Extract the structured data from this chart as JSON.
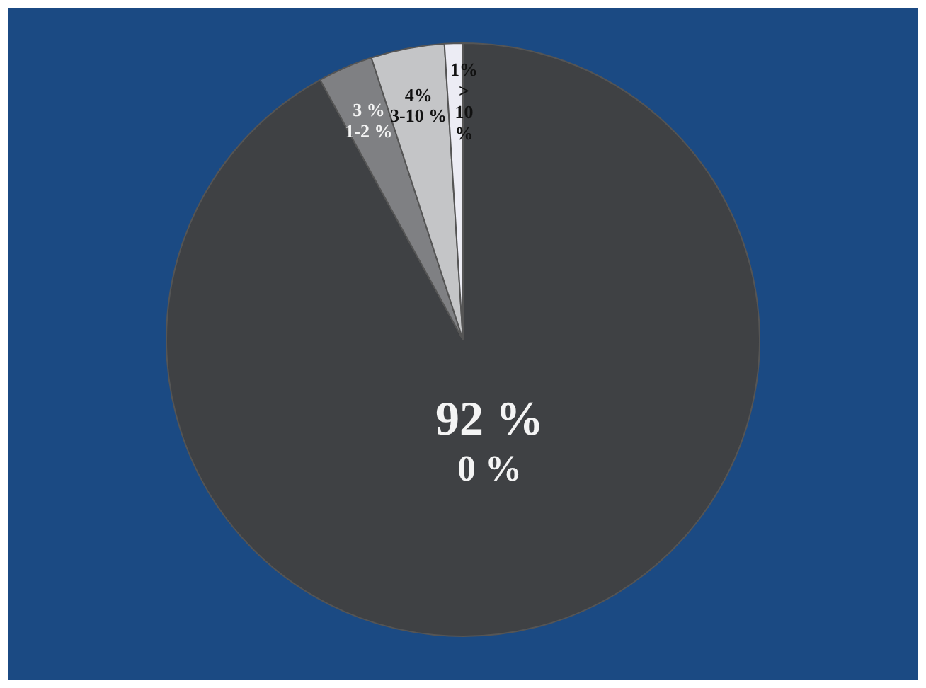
{
  "chart_data": {
    "type": "pie",
    "categories": [
      "0 %",
      "1-2 %",
      "3-10 %",
      "> 10 %"
    ],
    "values": [
      92,
      3,
      4,
      1
    ],
    "value_labels": [
      "92 %",
      "3 %",
      "4%",
      "1%"
    ],
    "colors": [
      "#3f4144",
      "#7f8083",
      "#c4c5c7",
      "#ececf4"
    ]
  }
}
